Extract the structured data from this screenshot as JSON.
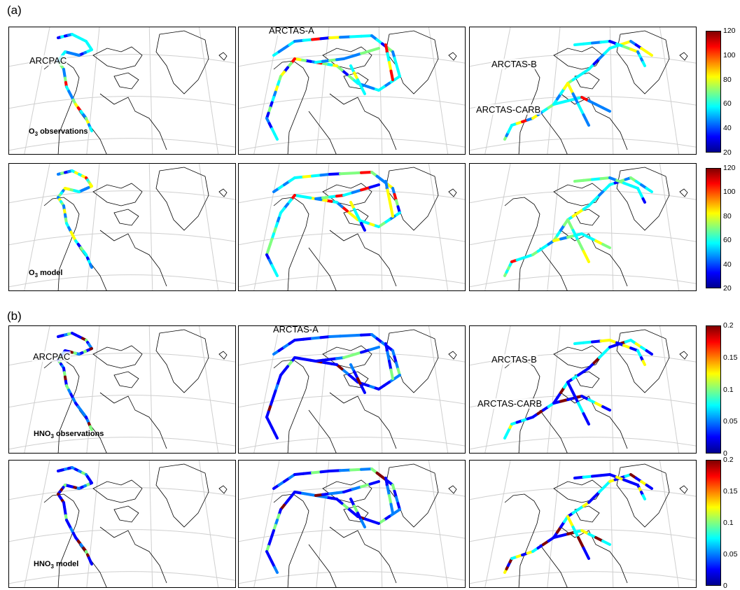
{
  "sections": {
    "a": "(a)",
    "b": "(b)"
  },
  "campaigns": {
    "arcpac": "ARCPAC",
    "arctas_a": "ARCTAS-A",
    "arctas_b": "ARCTAS-B",
    "arctas_carb": "ARCTAS-CARB"
  },
  "variables": {
    "o3_obs": {
      "prefix": "O",
      "sub": "3",
      "suffix": " observations"
    },
    "o3_model": {
      "prefix": "O",
      "sub": "3",
      "suffix": " model"
    },
    "hno3_obs": {
      "prefix": "HNO",
      "sub": "3",
      "suffix": " observations"
    },
    "hno3_model": {
      "prefix": "HNO",
      "sub": "3",
      "suffix": " model"
    }
  },
  "colorbars": {
    "o3_ticks": [
      "120",
      "100",
      "80",
      "60",
      "40",
      "20"
    ],
    "hno3_ticks": [
      "0.2",
      "0.15",
      "0.1",
      "0.05",
      "0"
    ]
  },
  "colors": {
    "jet": [
      "#00008f",
      "#0000ff",
      "#0080ff",
      "#00ffff",
      "#80ff80",
      "#ffff00",
      "#ff8000",
      "#ff0000",
      "#800000"
    ],
    "map_lines": "#000000",
    "graticule": "#cfcfcf"
  }
}
